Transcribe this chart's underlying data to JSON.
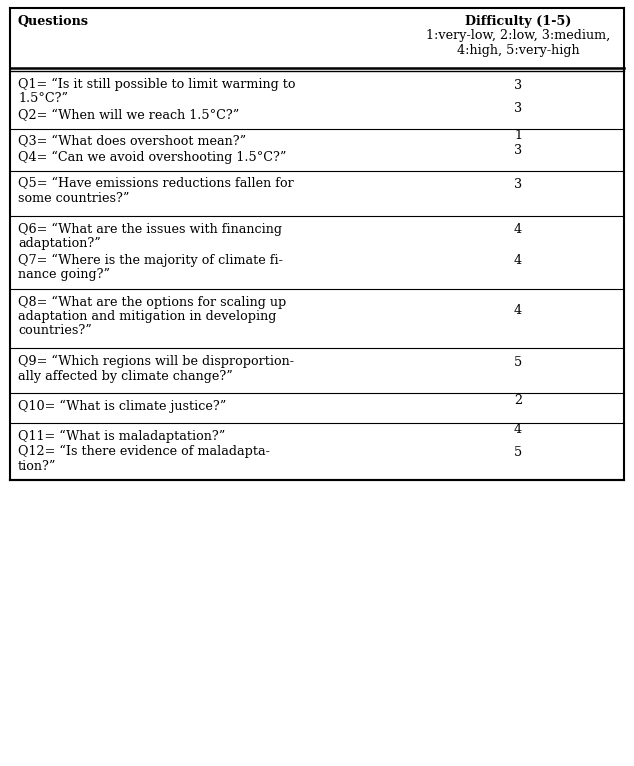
{
  "col1_header": "Questions",
  "col2_header_line1": "Difficulty (1-5)",
  "col2_header_line2": "1:very-low, 2:low, 3:medium,",
  "col2_header_line3": "4:high, 5:very-high",
  "groups": [
    {
      "questions": [
        {
          "lines": [
            "Q1= “Is it still possible to limit warming to",
            "1.5°C?”"
          ],
          "difficulty": "3"
        },
        {
          "lines": [
            "Q2= “When will we reach 1.5°C?”"
          ],
          "difficulty": "3"
        }
      ]
    },
    {
      "questions": [
        {
          "lines": [
            "Q3= “What does overshoot mean?”"
          ],
          "difficulty": "1"
        },
        {
          "lines": [
            "Q4= “Can we avoid overshooting 1.5°C?”"
          ],
          "difficulty": "3"
        }
      ]
    },
    {
      "questions": [
        {
          "lines": [
            "Q5= “Have emissions reductions fallen for",
            "some countries?”"
          ],
          "difficulty": "3"
        }
      ]
    },
    {
      "questions": [
        {
          "lines": [
            "Q6= “What are the issues with financing",
            "adaptation?”"
          ],
          "difficulty": "4"
        },
        {
          "lines": [
            "Q7= “Where is the majority of climate fi-",
            "nance going?”"
          ],
          "difficulty": "4"
        }
      ]
    },
    {
      "questions": [
        {
          "lines": [
            "Q8= “What are the options for scaling up",
            "adaptation and mitigation in developing",
            "countries?”"
          ],
          "difficulty": "4"
        }
      ]
    },
    {
      "questions": [
        {
          "lines": [
            "Q9= “Which regions will be disproportion-",
            "ally affected by climate change?”"
          ],
          "difficulty": "5"
        }
      ]
    },
    {
      "questions": [
        {
          "lines": [
            "Q10= “What is climate justice?”"
          ],
          "difficulty": "2"
        }
      ]
    },
    {
      "questions": [
        {
          "lines": [
            "Q11= “What is maladaptation?”"
          ],
          "difficulty": "4"
        },
        {
          "lines": [
            "Q12= “Is there evidence of maladapta-",
            "tion?”"
          ],
          "difficulty": "5"
        }
      ]
    }
  ],
  "font_size": 9.2,
  "header_font_size": 9.2,
  "bg_color": "#ffffff",
  "text_color": "#000000"
}
